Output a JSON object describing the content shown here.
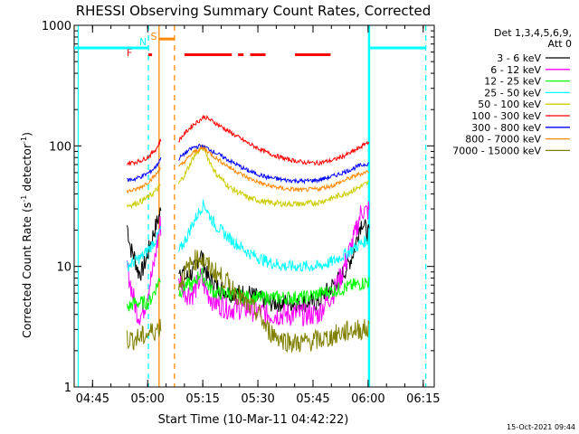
{
  "chart_data": {
    "type": "line",
    "title": "RHESSI Observing Summary Count Rates, Corrected",
    "xlabel": "Start Time (10-Mar-11 04:42:22)",
    "ylabel_main": "Corrected Count Rate (s",
    "ylabel_sup1": "-1",
    "ylabel_mid": " detector",
    "ylabel_sup2": "-1",
    "ylabel_end": ")",
    "xlim": [
      -2.4,
      95.6
    ],
    "ylim": [
      1,
      1000
    ],
    "yscale": "log",
    "x_ticks": [
      {
        "value": 2.6,
        "label": "04:45"
      },
      {
        "value": 17.6,
        "label": "05:00"
      },
      {
        "value": 32.6,
        "label": "05:15"
      },
      {
        "value": 47.6,
        "label": "05:30"
      },
      {
        "value": 62.6,
        "label": "05:45"
      },
      {
        "value": 77.6,
        "label": "06:00"
      },
      {
        "value": 92.6,
        "label": "06:15"
      }
    ],
    "y_ticks": [
      {
        "value": 1,
        "label": "1"
      },
      {
        "value": 10,
        "label": "10"
      },
      {
        "value": 100,
        "label": "100"
      },
      {
        "value": 1000,
        "label": "1000"
      }
    ],
    "legend_title": "Det 1,3,4,5,6,9,",
    "legend_subtitle": "Att 0",
    "legend_position": "right",
    "series": [
      {
        "name": "3 - 6 keV",
        "color": "#000000",
        "points": [
          [
            12,
            22
          ],
          [
            13,
            14
          ],
          [
            14,
            12
          ],
          [
            15,
            9
          ],
          [
            16,
            9
          ],
          [
            17,
            11
          ],
          [
            18,
            14
          ],
          [
            19,
            18
          ],
          [
            21,
            28
          ],
          [
            23,
            22
          ],
          [
            25,
            16
          ],
          [
            26,
            10
          ],
          [
            28,
            8
          ],
          [
            30,
            9
          ],
          [
            32,
            13
          ],
          [
            34,
            8
          ],
          [
            36,
            7
          ],
          [
            40,
            6
          ],
          [
            45,
            6
          ],
          [
            50,
            5
          ],
          [
            55,
            5
          ],
          [
            60,
            5
          ],
          [
            64,
            5
          ],
          [
            66,
            6
          ],
          [
            68,
            7
          ],
          [
            70,
            8
          ],
          [
            72,
            10
          ],
          [
            74,
            14
          ],
          [
            75,
            20
          ],
          [
            76,
            24
          ],
          [
            77,
            20
          ],
          [
            78,
            18
          ]
        ]
      },
      {
        "name": "6 - 12 keV",
        "color": "#ff00ff",
        "points": [
          [
            12,
            10
          ],
          [
            13,
            7
          ],
          [
            14,
            5
          ],
          [
            15,
            4
          ],
          [
            16,
            4
          ],
          [
            17,
            5
          ],
          [
            18,
            7
          ],
          [
            19,
            9
          ],
          [
            21,
            22
          ],
          [
            23,
            17
          ],
          [
            25,
            10
          ],
          [
            26,
            8
          ],
          [
            28,
            6
          ],
          [
            30,
            6
          ],
          [
            32,
            8
          ],
          [
            34,
            6
          ],
          [
            36,
            5
          ],
          [
            40,
            4.5
          ],
          [
            45,
            4.5
          ],
          [
            50,
            4
          ],
          [
            55,
            4
          ],
          [
            60,
            4
          ],
          [
            64,
            4
          ],
          [
            66,
            5
          ],
          [
            68,
            6
          ],
          [
            70,
            8
          ],
          [
            72,
            12
          ],
          [
            74,
            18
          ],
          [
            75,
            24
          ],
          [
            76,
            30
          ],
          [
            77,
            28
          ],
          [
            78,
            30
          ]
        ]
      },
      {
        "name": "12 - 25 keV",
        "color": "#00ff00",
        "points": [
          [
            12,
            4.5
          ],
          [
            14,
            5
          ],
          [
            16,
            5
          ],
          [
            18,
            5
          ],
          [
            21,
            8
          ],
          [
            26,
            6
          ],
          [
            28,
            7
          ],
          [
            30,
            7
          ],
          [
            32,
            9
          ],
          [
            34,
            7
          ],
          [
            36,
            6
          ],
          [
            40,
            6
          ],
          [
            45,
            5.5
          ],
          [
            50,
            5.5
          ],
          [
            55,
            5.5
          ],
          [
            60,
            5.5
          ],
          [
            65,
            6
          ],
          [
            70,
            6.5
          ],
          [
            74,
            7
          ],
          [
            78,
            7.5
          ]
        ]
      },
      {
        "name": "25 - 50 keV",
        "color": "#00ffff",
        "points": [
          [
            12,
            10
          ],
          [
            14,
            11
          ],
          [
            16,
            12
          ],
          [
            18,
            14
          ],
          [
            20,
            17
          ],
          [
            21,
            20
          ],
          [
            26,
            13
          ],
          [
            28,
            17
          ],
          [
            30,
            23
          ],
          [
            32,
            30
          ],
          [
            33,
            33
          ],
          [
            34,
            28
          ],
          [
            36,
            22
          ],
          [
            40,
            17
          ],
          [
            45,
            13
          ],
          [
            50,
            11
          ],
          [
            55,
            10
          ],
          [
            60,
            10
          ],
          [
            64,
            10
          ],
          [
            68,
            11
          ],
          [
            72,
            13
          ],
          [
            75,
            15
          ],
          [
            78,
            17
          ]
        ]
      },
      {
        "name": "50 - 100 keV",
        "color": "#cccc00",
        "points": [
          [
            12,
            32
          ],
          [
            14,
            33
          ],
          [
            16,
            35
          ],
          [
            18,
            38
          ],
          [
            20,
            43
          ],
          [
            21,
            47
          ],
          [
            26,
            48
          ],
          [
            28,
            60
          ],
          [
            30,
            80
          ],
          [
            32,
            95
          ],
          [
            33,
            95
          ],
          [
            34,
            80
          ],
          [
            36,
            60
          ],
          [
            40,
            45
          ],
          [
            45,
            37
          ],
          [
            50,
            34
          ],
          [
            55,
            33
          ],
          [
            60,
            33
          ],
          [
            64,
            34
          ],
          [
            68,
            37
          ],
          [
            72,
            41
          ],
          [
            75,
            45
          ],
          [
            78,
            50
          ]
        ]
      },
      {
        "name": "100 - 300 keV",
        "color": "#ff0000",
        "points": [
          [
            12,
            72
          ],
          [
            14,
            73
          ],
          [
            16,
            76
          ],
          [
            18,
            82
          ],
          [
            20,
            95
          ],
          [
            21,
            110
          ],
          [
            26,
            110
          ],
          [
            28,
            130
          ],
          [
            30,
            150
          ],
          [
            32,
            165
          ],
          [
            33,
            175
          ],
          [
            34,
            168
          ],
          [
            36,
            155
          ],
          [
            40,
            130
          ],
          [
            45,
            105
          ],
          [
            50,
            88
          ],
          [
            55,
            78
          ],
          [
            60,
            73
          ],
          [
            64,
            72
          ],
          [
            68,
            76
          ],
          [
            72,
            85
          ],
          [
            75,
            95
          ],
          [
            77,
            105
          ],
          [
            78,
            110
          ]
        ]
      },
      {
        "name": "300 - 800 keV",
        "color": "#0000ff",
        "points": [
          [
            12,
            52
          ],
          [
            14,
            53
          ],
          [
            16,
            56
          ],
          [
            18,
            60
          ],
          [
            20,
            68
          ],
          [
            21,
            78
          ],
          [
            26,
            78
          ],
          [
            28,
            88
          ],
          [
            30,
            97
          ],
          [
            32,
            100
          ],
          [
            33,
            98
          ],
          [
            34,
            95
          ],
          [
            36,
            88
          ],
          [
            40,
            75
          ],
          [
            45,
            62
          ],
          [
            50,
            55
          ],
          [
            55,
            52
          ],
          [
            60,
            51
          ],
          [
            64,
            52
          ],
          [
            68,
            56
          ],
          [
            72,
            62
          ],
          [
            75,
            68
          ],
          [
            78,
            72
          ]
        ]
      },
      {
        "name": "800 - 7000 keV",
        "color": "#ff8800",
        "points": [
          [
            12,
            42
          ],
          [
            14,
            43
          ],
          [
            16,
            46
          ],
          [
            18,
            51
          ],
          [
            20,
            58
          ],
          [
            21,
            66
          ],
          [
            26,
            66
          ],
          [
            28,
            76
          ],
          [
            30,
            88
          ],
          [
            32,
            95
          ],
          [
            33,
            95
          ],
          [
            34,
            90
          ],
          [
            36,
            80
          ],
          [
            40,
            66
          ],
          [
            45,
            54
          ],
          [
            50,
            47
          ],
          [
            55,
            44
          ],
          [
            60,
            43
          ],
          [
            64,
            44
          ],
          [
            68,
            47
          ],
          [
            72,
            53
          ],
          [
            75,
            58
          ],
          [
            78,
            62
          ]
        ]
      },
      {
        "name": "7000 - 15000 keV",
        "color": "#808000",
        "points": [
          [
            12,
            2.5
          ],
          [
            14,
            2.5
          ],
          [
            16,
            2.6
          ],
          [
            18,
            2.8
          ],
          [
            20,
            3.0
          ],
          [
            21,
            3.2
          ],
          [
            26,
            7
          ],
          [
            28,
            9
          ],
          [
            30,
            11
          ],
          [
            32,
            12
          ],
          [
            34,
            10
          ],
          [
            36,
            9
          ],
          [
            40,
            7
          ],
          [
            44,
            5
          ],
          [
            48,
            4
          ],
          [
            50,
            3
          ],
          [
            54,
            2.5
          ],
          [
            58,
            2.3
          ],
          [
            62,
            2.4
          ],
          [
            66,
            2.5
          ],
          [
            70,
            2.8
          ],
          [
            74,
            3.0
          ],
          [
            78,
            3.0
          ]
        ]
      }
    ],
    "status_bars": [
      {
        "label": "F",
        "color": "#ff0000",
        "level": 570,
        "segments": [
          [
            17.8,
            18.8
          ],
          [
            27.6,
            40.5
          ],
          [
            42.2,
            43.7
          ],
          [
            45.5,
            49.7
          ],
          [
            57.7,
            67.4
          ]
        ]
      },
      {
        "label": "N",
        "color": "#00ffff",
        "level": 650,
        "segments": [
          [
            -2.4,
            17.8
          ],
          [
            78.0,
            93.3
          ]
        ]
      },
      {
        "label": "S",
        "color": "#ff8800",
        "level": 770,
        "segments": [
          [
            20.7,
            24.9
          ]
        ]
      }
    ],
    "vertical_lines": [
      {
        "x": 17.8,
        "color": "#00ffff",
        "style": "dashed"
      },
      {
        "x": 20.7,
        "color": "#ff8800",
        "style": "solid"
      },
      {
        "x": 24.9,
        "color": "#ff8800",
        "style": "dashed"
      },
      {
        "x": 77.7,
        "color": "#00ffff",
        "style": "solid"
      },
      {
        "x": 78.0,
        "color": "#00ffff",
        "style": "solid"
      },
      {
        "x": 93.3,
        "color": "#00ffff",
        "style": "dashed"
      },
      {
        "x": -1.3,
        "color": "#00ffff",
        "style": "solid"
      }
    ]
  },
  "footer_timestamp": "15-Oct-2021 09:44"
}
